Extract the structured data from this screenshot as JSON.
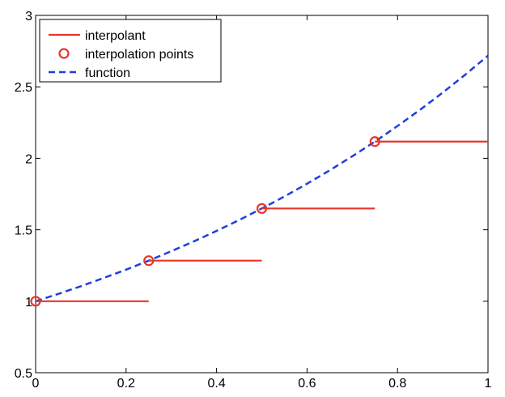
{
  "chart_data": {
    "type": "line",
    "title": "",
    "xlabel": "",
    "ylabel": "",
    "xlim": [
      0,
      1
    ],
    "ylim": [
      0.5,
      3
    ],
    "xticks": [
      0,
      0.2,
      0.4,
      0.6,
      0.8,
      1
    ],
    "xtick_labels": [
      "0",
      "0.2",
      "0.4",
      "0.6",
      "0.8",
      "1"
    ],
    "yticks": [
      0.5,
      1,
      1.5,
      2,
      2.5,
      3
    ],
    "ytick_labels": [
      "0.5",
      "1",
      "1.5",
      "2",
      "2.5",
      "3"
    ],
    "grid": false,
    "legend_position": "top-left",
    "series": [
      {
        "name": "interpolant",
        "style": "solid",
        "color": "#e8352a",
        "segments": [
          {
            "x": [
              0,
              0.25
            ],
            "y": [
              1.0,
              1.0
            ]
          },
          {
            "x": [
              0.25,
              0.5
            ],
            "y": [
              1.284,
              1.284
            ]
          },
          {
            "x": [
              0.5,
              0.75
            ],
            "y": [
              1.649,
              1.649
            ]
          },
          {
            "x": [
              0.75,
              1.0
            ],
            "y": [
              2.117,
              2.117
            ]
          }
        ]
      },
      {
        "name": "interpolation points",
        "style": "marker-circle",
        "color": "#e8352a",
        "x": [
          0,
          0.25,
          0.5,
          0.75
        ],
        "y": [
          1.0,
          1.284,
          1.649,
          2.117
        ]
      },
      {
        "name": "function",
        "style": "dashed",
        "color": "#1f3fdc",
        "x": [
          0,
          0.05,
          0.1,
          0.15,
          0.2,
          0.25,
          0.3,
          0.35,
          0.4,
          0.45,
          0.5,
          0.55,
          0.6,
          0.65,
          0.7,
          0.75,
          0.8,
          0.85,
          0.9,
          0.95,
          1.0
        ],
        "y": [
          1.0,
          1.051,
          1.105,
          1.162,
          1.221,
          1.284,
          1.35,
          1.419,
          1.492,
          1.568,
          1.649,
          1.733,
          1.822,
          1.916,
          2.014,
          2.117,
          2.226,
          2.34,
          2.46,
          2.586,
          2.718
        ]
      }
    ]
  }
}
